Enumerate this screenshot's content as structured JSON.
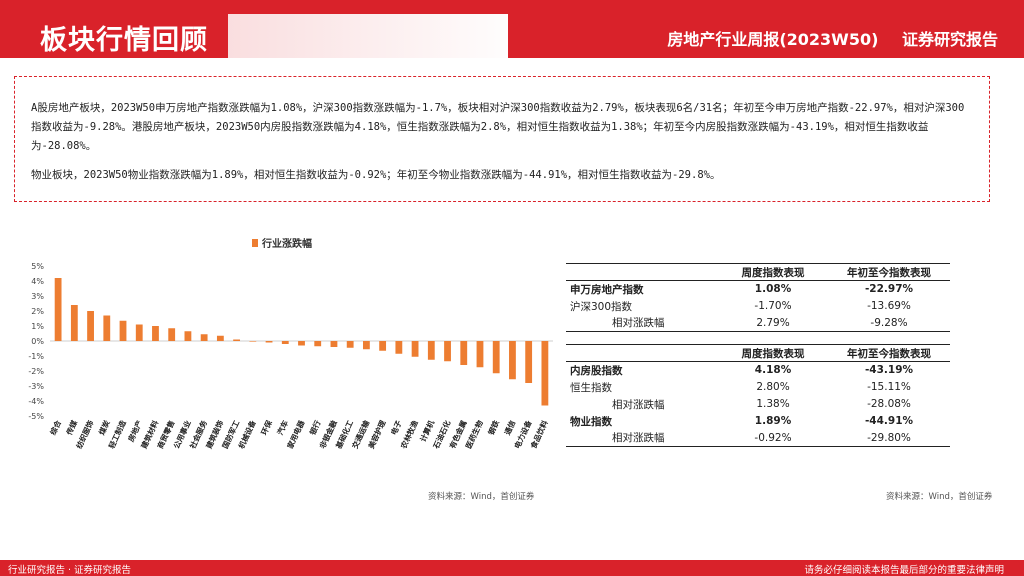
{
  "header": {
    "title": "板块行情回顾",
    "report_title": "房地产行业周报(2023W50)",
    "report_type": "证券研究报告"
  },
  "summary": {
    "para1": "A股房地产板块，2023W50申万房地产指数涨跌幅为1.08%，沪深300指数涨跌幅为-1.7%，板块相对沪深300指数收益为2.79%，板块表现6名/31名；年初至今申万房地产指数-22.97%，相对沪深300指数收益为-9.28%。港股房地产板块，2023W50内房股指数涨跌幅为4.18%，恒生指数涨跌幅为2.8%，相对恒生指数收益为1.38%；年初至今内房股指数涨跌幅为-43.19%，相对恒生指数收益为-28.08%。",
    "para2": "物业板块，2023W50物业指数涨跌幅为1.89%，相对恒生指数收益为-0.92%；年初至今物业指数涨跌幅为-44.91%，相对恒生指数收益为-29.8%。"
  },
  "chart_data": {
    "type": "bar",
    "title": "",
    "series": [
      {
        "name": "行业涨跌幅",
        "color": "#ed7d31",
        "values": [
          4.2,
          2.4,
          2.0,
          1.7,
          1.35,
          1.1,
          1.0,
          0.85,
          0.65,
          0.45,
          0.35,
          0.1,
          0.0,
          -0.1,
          -0.2,
          -0.3,
          -0.35,
          -0.4,
          -0.45,
          -0.55,
          -0.65,
          -0.85,
          -1.05,
          -1.25,
          -1.35,
          -1.6,
          -1.75,
          -2.15,
          -2.55,
          -2.8,
          -4.3
        ]
      }
    ],
    "categories": [
      "综合",
      "传媒",
      "纺织服饰",
      "煤炭",
      "轻工制造",
      "房地产",
      "建筑材料",
      "商贸零售",
      "公用事业",
      "社会服务",
      "建筑装饰",
      "国防军工",
      "机械设备",
      "环保",
      "汽车",
      "家用电器",
      "银行",
      "非银金融",
      "基础化工",
      "交通运输",
      "美容护理",
      "电子",
      "农林牧渔",
      "计算机",
      "石油石化",
      "有色金属",
      "医药生物",
      "钢铁",
      "通信",
      "电力设备",
      "食品饮料"
    ],
    "ylim": [
      -5,
      5
    ],
    "yticks": [
      "5%",
      "4%",
      "3%",
      "2%",
      "1%",
      "0%",
      "-1%",
      "-2%",
      "-3%",
      "-4%",
      "-5%"
    ],
    "legend": "top",
    "grid": false
  },
  "source_label": "资料来源：Wind，首创证券",
  "table1": {
    "headers": [
      "",
      "周度指数表现",
      "年初至今指数表现"
    ],
    "rows": [
      {
        "name": "申万房地产指数",
        "week": "1.08%",
        "ytd": "-22.97%",
        "bold": true
      },
      {
        "name": "沪深300指数",
        "week": "-1.70%",
        "ytd": "-13.69%",
        "bold": false
      },
      {
        "name": "相对涨跌幅",
        "week": "2.79%",
        "ytd": "-9.28%",
        "bold": false
      }
    ]
  },
  "table2": {
    "headers": [
      "",
      "周度指数表现",
      "年初至今指数表现"
    ],
    "rows": [
      {
        "name": "内房股指数",
        "week": "4.18%",
        "ytd": "-43.19%",
        "bold": true
      },
      {
        "name": "恒生指数",
        "week": "2.80%",
        "ytd": "-15.11%",
        "bold": false
      },
      {
        "name": "相对涨跌幅",
        "week": "1.38%",
        "ytd": "-28.08%",
        "bold": false
      },
      {
        "name": "物业指数",
        "week": "1.89%",
        "ytd": "-44.91%",
        "bold": true
      },
      {
        "name": "相对涨跌幅",
        "week": "-0.92%",
        "ytd": "-29.80%",
        "bold": false
      }
    ]
  },
  "footer": {
    "left": "行业研究报告 · 证券研究报告",
    "right": "请务必仔细阅读本报告最后部分的重要法律声明"
  },
  "colors": {
    "brand": "#d9222a",
    "bar": "#ed7d31"
  }
}
